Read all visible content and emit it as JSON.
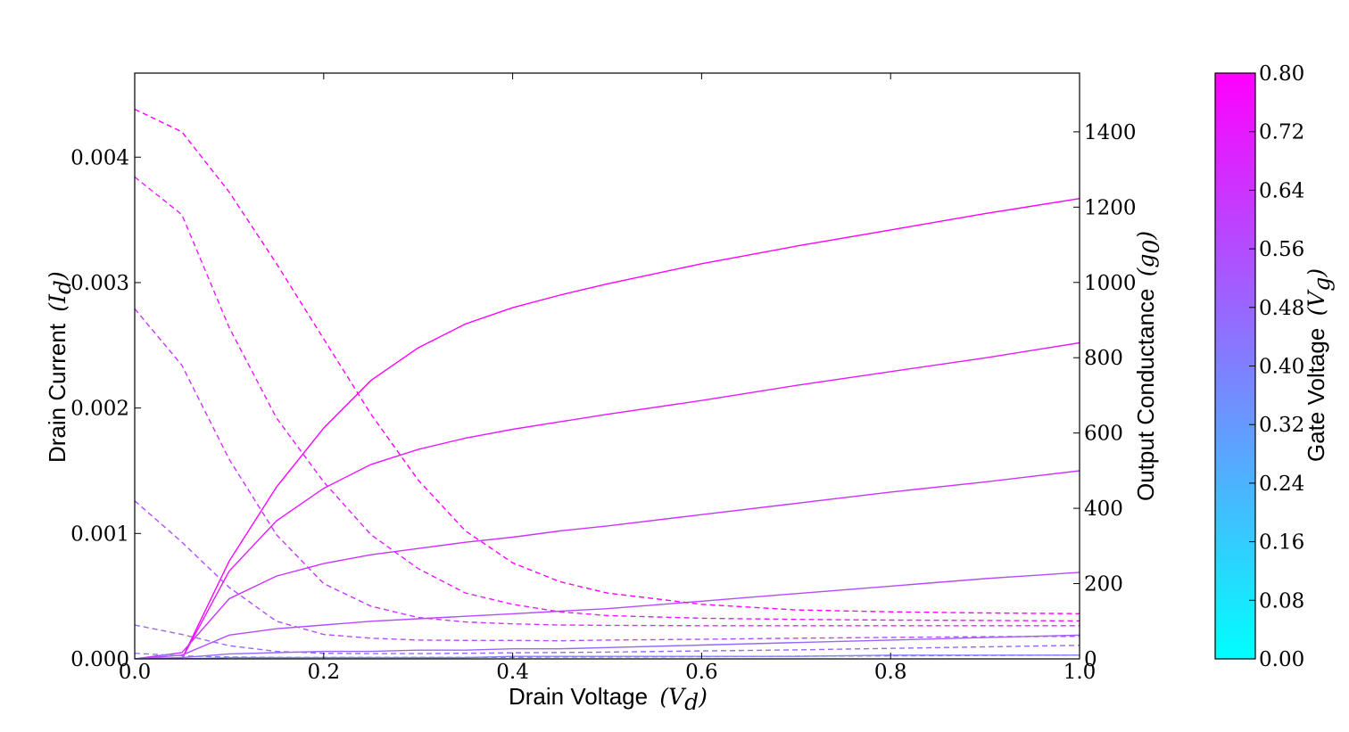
{
  "chart_data": {
    "type": "line",
    "xlabel": "Drain Voltage",
    "xlabel_var": "(V",
    "xlabel_sub": "d",
    "xlabel_close": ")",
    "ylabel_left": "Drain Current",
    "ylabel_left_var": "(I",
    "ylabel_left_sub": "d",
    "ylabel_left_close": ")",
    "ylabel_right": "Output Conductance",
    "ylabel_right_var": "(g",
    "ylabel_right_sub": "0",
    "ylabel_right_close": ")",
    "colorbar_label": "Gate Voltage",
    "colorbar_var": "(V",
    "colorbar_sub": "g",
    "colorbar_close": ")",
    "xlim": [
      0,
      1.0
    ],
    "ylim_left": [
      0,
      0.00467
    ],
    "ylim_right": [
      0,
      1556
    ],
    "colorbar_range": [
      0,
      0.8
    ],
    "x_ticks": [
      "0.0",
      "0.2",
      "0.4",
      "0.6",
      "0.8",
      "1.0"
    ],
    "y_left_ticks": [
      "0.000",
      "0.001",
      "0.002",
      "0.003",
      "0.004"
    ],
    "y_right_ticks": [
      "0",
      "200",
      "400",
      "600",
      "800",
      "1000",
      "1200",
      "1400"
    ],
    "colorbar_ticks": [
      "0.00",
      "0.08",
      "0.16",
      "0.24",
      "0.32",
      "0.40",
      "0.48",
      "0.56",
      "0.64",
      "0.72",
      "0.80"
    ],
    "colors": {
      "low": "#00ffff",
      "high": "#ff00ff"
    },
    "x": [
      0,
      0.05,
      0.1,
      0.15,
      0.2,
      0.25,
      0.3,
      0.35,
      0.4,
      0.45,
      0.5,
      0.6,
      0.7,
      0.8,
      0.9,
      1.0
    ],
    "series": [
      {
        "name": "Id Vg=0.80",
        "axis": "left",
        "style": "solid",
        "vg": 0.8,
        "values": [
          0,
          0,
          0.00078,
          0.00137,
          0.00184,
          0.00222,
          0.00248,
          0.00267,
          0.0028,
          0.0029,
          0.00299,
          0.00315,
          0.00329,
          0.00342,
          0.00355,
          0.00367
        ]
      },
      {
        "name": "Id Vg=0.72",
        "axis": "left",
        "style": "solid",
        "vg": 0.72,
        "values": [
          0,
          0,
          0.0007,
          0.0011,
          0.00136,
          0.00155,
          0.00167,
          0.00176,
          0.00183,
          0.00189,
          0.00195,
          0.00206,
          0.00218,
          0.00229,
          0.0024,
          0.00252
        ]
      },
      {
        "name": "Id Vg=0.64",
        "axis": "left",
        "style": "solid",
        "vg": 0.64,
        "values": [
          0,
          5e-05,
          0.00048,
          0.00066,
          0.00076,
          0.00083,
          0.00088,
          0.00093,
          0.00097,
          0.00102,
          0.00106,
          0.00115,
          0.00124,
          0.00133,
          0.00141,
          0.0015
        ]
      },
      {
        "name": "Id Vg=0.56",
        "axis": "left",
        "style": "solid",
        "vg": 0.56,
        "values": [
          0,
          3e-05,
          0.00019,
          0.00024,
          0.00027,
          0.0003,
          0.00032,
          0.00034,
          0.00036,
          0.00038,
          0.0004,
          0.00046,
          0.00052,
          0.00058,
          0.00064,
          0.00069
        ]
      },
      {
        "name": "Id Vg=0.48",
        "axis": "left",
        "style": "solid",
        "vg": 0.48,
        "values": [
          0,
          1e-05,
          4e-05,
          5e-05,
          6e-05,
          6e-05,
          7e-05,
          7e-05,
          8e-05,
          8e-05,
          9e-05,
          0.00011,
          0.00013,
          0.00015,
          0.00017,
          0.00019
        ]
      },
      {
        "name": "Id Vg=0.40",
        "axis": "left",
        "style": "solid",
        "vg": 0.4,
        "values": [
          0,
          0,
          1e-05,
          1e-05,
          1e-05,
          1e-05,
          1e-05,
          1e-05,
          2e-05,
          2e-05,
          2e-05,
          2e-05,
          2e-05,
          3e-05,
          3e-05,
          3e-05
        ]
      },
      {
        "name": "g0 Vg=0.80",
        "axis": "right",
        "style": "dashed",
        "vg": 0.8,
        "values": [
          1460,
          1400,
          1240,
          1050,
          850,
          650,
          475,
          340,
          255,
          205,
          175,
          145,
          130,
          125,
          122,
          120
        ]
      },
      {
        "name": "g0 Vg=0.72",
        "axis": "right",
        "style": "dashed",
        "vg": 0.72,
        "values": [
          1280,
          1180,
          880,
          640,
          470,
          330,
          240,
          175,
          145,
          125,
          115,
          108,
          105,
          103,
          102,
          101
        ]
      },
      {
        "name": "g0 Vg=0.64",
        "axis": "right",
        "style": "dashed",
        "vg": 0.64,
        "values": [
          930,
          780,
          530,
          330,
          200,
          140,
          110,
          98,
          93,
          90,
          89,
          88,
          88,
          88,
          88,
          88
        ]
      },
      {
        "name": "g0 Vg=0.56",
        "axis": "right",
        "style": "dashed",
        "vg": 0.56,
        "values": [
          420,
          310,
          190,
          100,
          65,
          55,
          50,
          49,
          49,
          48,
          50,
          52,
          55,
          57,
          59,
          60
        ]
      },
      {
        "name": "g0 Vg=0.48",
        "axis": "right",
        "style": "dashed",
        "vg": 0.48,
        "values": [
          90,
          65,
          35,
          20,
          15,
          14,
          14,
          15,
          16,
          17,
          18,
          21,
          24,
          28,
          32,
          36
        ]
      },
      {
        "name": "g0 Vg=0.40",
        "axis": "right",
        "style": "dashed",
        "vg": 0.4,
        "values": [
          15,
          8,
          5,
          4,
          4,
          4,
          4,
          4,
          4,
          5,
          5,
          6,
          7,
          8,
          9,
          10
        ]
      }
    ]
  }
}
